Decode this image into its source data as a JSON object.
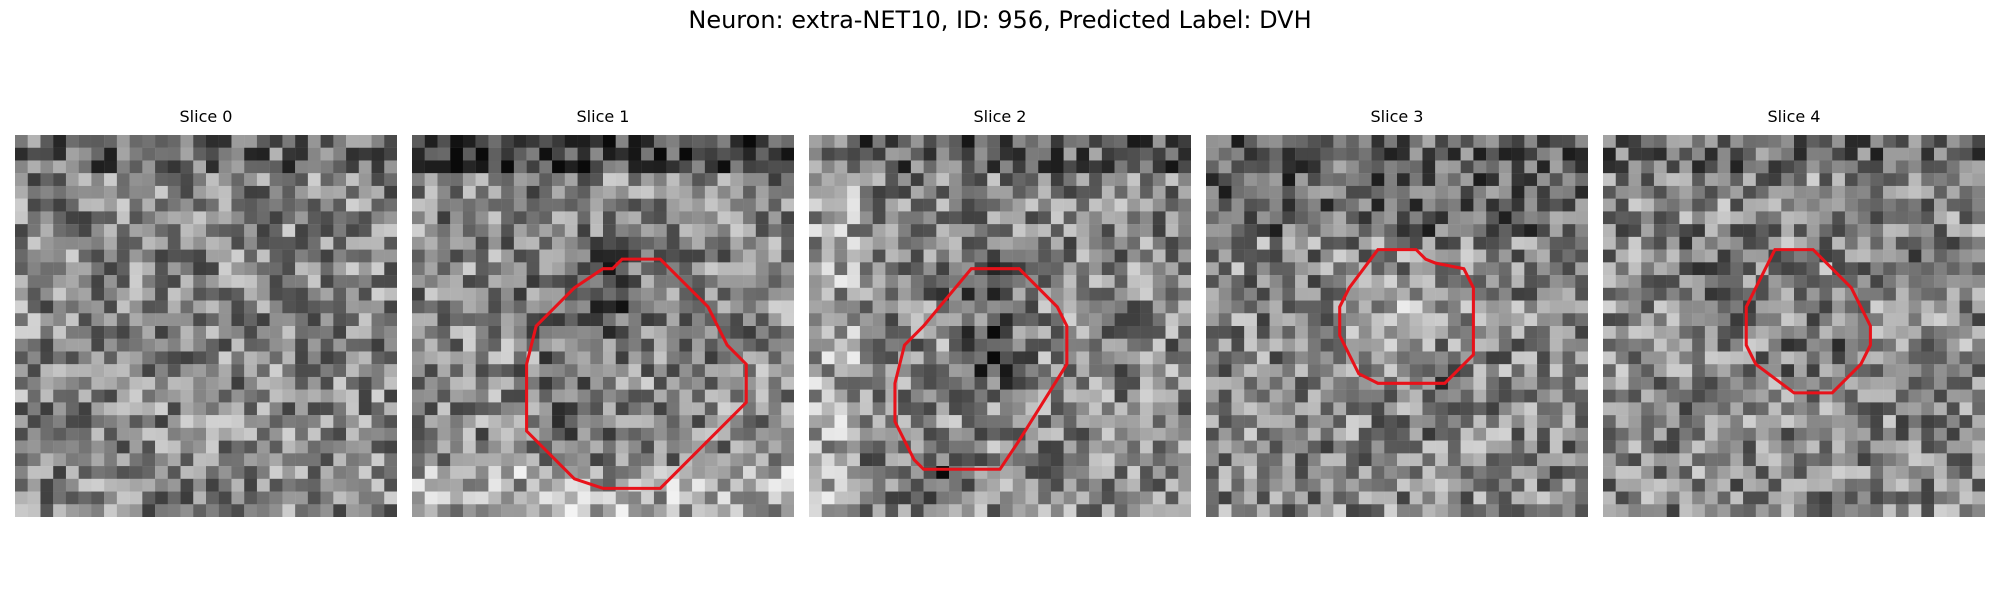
{
  "figure": {
    "title": "Neuron: extra-NET10, ID: 956, Predicted Label: DVH"
  },
  "panels": [
    {
      "title": "Slice 0",
      "contour": []
    },
    {
      "title": "Slice 1",
      "contour": [
        [
          11,
          6.5
        ],
        [
          13,
          6.5
        ],
        [
          15,
          8.5
        ],
        [
          15.5,
          9
        ],
        [
          16,
          10
        ],
        [
          16.5,
          11
        ],
        [
          17.5,
          12
        ],
        [
          17.5,
          14
        ],
        [
          16,
          15.5
        ],
        [
          13,
          18.5
        ],
        [
          10,
          18.5
        ],
        [
          8.5,
          18
        ],
        [
          6,
          15.5
        ],
        [
          6,
          12
        ],
        [
          6.5,
          10
        ],
        [
          7.5,
          9
        ],
        [
          8.5,
          8
        ],
        [
          10,
          7
        ],
        [
          10.5,
          7
        ]
      ]
    },
    {
      "title": "Slice 2",
      "contour": [
        [
          8.5,
          7
        ],
        [
          11,
          7
        ],
        [
          13,
          9
        ],
        [
          13.5,
          10
        ],
        [
          13.5,
          12
        ],
        [
          11,
          16
        ],
        [
          10,
          17.5
        ],
        [
          9,
          17.5
        ],
        [
          6,
          17.5
        ],
        [
          5.5,
          17
        ],
        [
          5,
          16
        ],
        [
          4.5,
          15
        ],
        [
          4.5,
          13
        ],
        [
          5,
          11
        ],
        [
          6,
          10
        ]
      ]
    },
    {
      "title": "Slice 3",
      "contour": [
        [
          9,
          6
        ],
        [
          11,
          6
        ],
        [
          11.5,
          6.5
        ],
        [
          12,
          6.7
        ],
        [
          13.5,
          7
        ],
        [
          14,
          8
        ],
        [
          14,
          11.5
        ],
        [
          12.5,
          13
        ],
        [
          11,
          13
        ],
        [
          9,
          13
        ],
        [
          8,
          12.5
        ],
        [
          7.5,
          11.5
        ],
        [
          7,
          10.5
        ],
        [
          7,
          9
        ],
        [
          7.5,
          8
        ]
      ]
    },
    {
      "title": "Slice 4",
      "contour": [
        [
          9,
          6
        ],
        [
          11,
          6
        ],
        [
          11.5,
          6.5
        ],
        [
          12,
          7
        ],
        [
          13,
          8
        ],
        [
          13.5,
          9
        ],
        [
          14,
          10
        ],
        [
          14,
          11
        ],
        [
          13.5,
          12
        ],
        [
          12,
          13.5
        ],
        [
          11,
          13.5
        ],
        [
          10,
          13.5
        ],
        [
          8,
          12
        ],
        [
          7.5,
          11
        ],
        [
          7.5,
          9
        ],
        [
          8,
          8
        ]
      ]
    }
  ]
}
